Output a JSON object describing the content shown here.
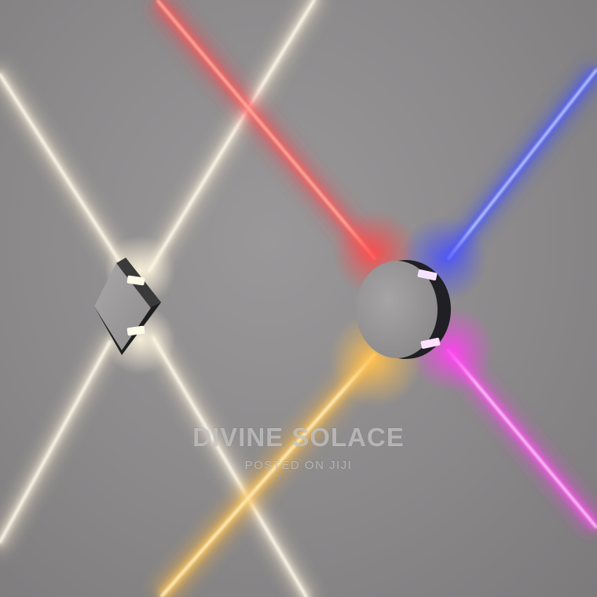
{
  "watermark": {
    "main": "DIVINE SOLACE",
    "sub": "POSTED ON JIJI"
  },
  "colors": {
    "wall": "#8e8c8d",
    "warm_white": "#fff4dc",
    "red": "#ff3a4a",
    "blue": "#3a4bff",
    "magenta": "#ff3cf0",
    "amber": "#ffb640",
    "fixture_body": "#9c9a9b",
    "fixture_edge": "#2a2a2a"
  }
}
